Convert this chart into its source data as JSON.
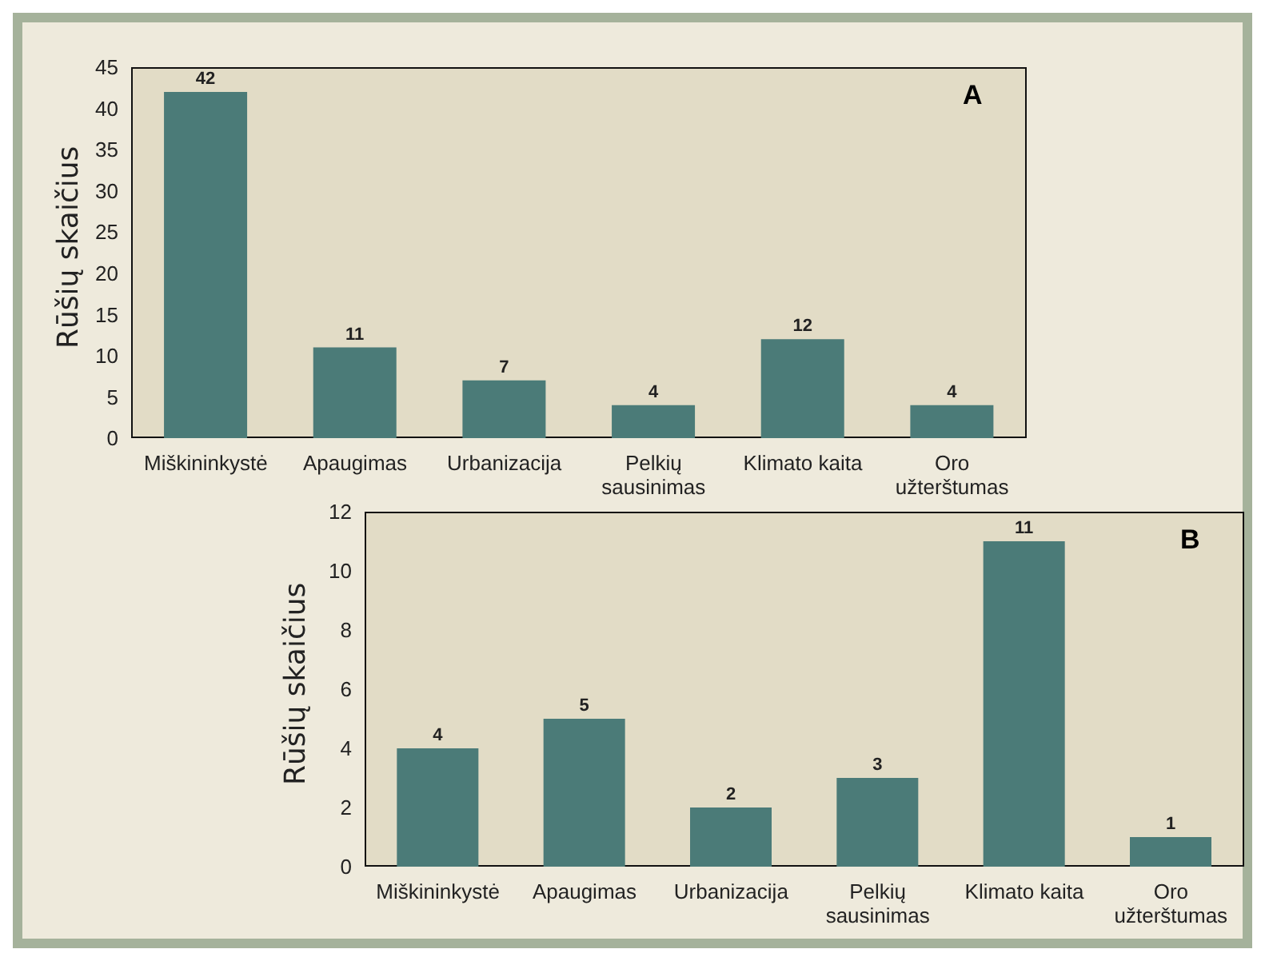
{
  "chart_data": [
    {
      "type": "bar",
      "annotations": [
        "A"
      ],
      "ylabel": "Rūšių skaičius",
      "categories": [
        "Miškininkystė",
        "Apaugimas",
        "Urbanizacija",
        "Pelkių sausinimas",
        "Klimato kaita",
        "Oro užterštumas"
      ],
      "values": [
        42,
        11,
        7,
        4,
        12,
        4
      ],
      "color": "#4b7b78",
      "ylim": [
        0,
        45
      ],
      "yticks": [
        0,
        5,
        10,
        15,
        20,
        25,
        30,
        35,
        40,
        45
      ],
      "data_labels": true,
      "grid": false,
      "legend": false
    },
    {
      "type": "bar",
      "annotations": [
        "B"
      ],
      "ylabel": "Rūšių skaičius",
      "categories": [
        "Miškininkystė",
        "Apaugimas",
        "Urbanizacija",
        "Pelkių sausinimas",
        "Klimato kaita",
        "Oro užterštumas"
      ],
      "values": [
        4,
        5,
        2,
        3,
        11,
        1
      ],
      "color": "#4b7b78",
      "ylim": [
        0,
        12
      ],
      "yticks": [
        0,
        2,
        4,
        6,
        8,
        10,
        12
      ],
      "data_labels": true,
      "grid": false,
      "legend": false
    }
  ]
}
